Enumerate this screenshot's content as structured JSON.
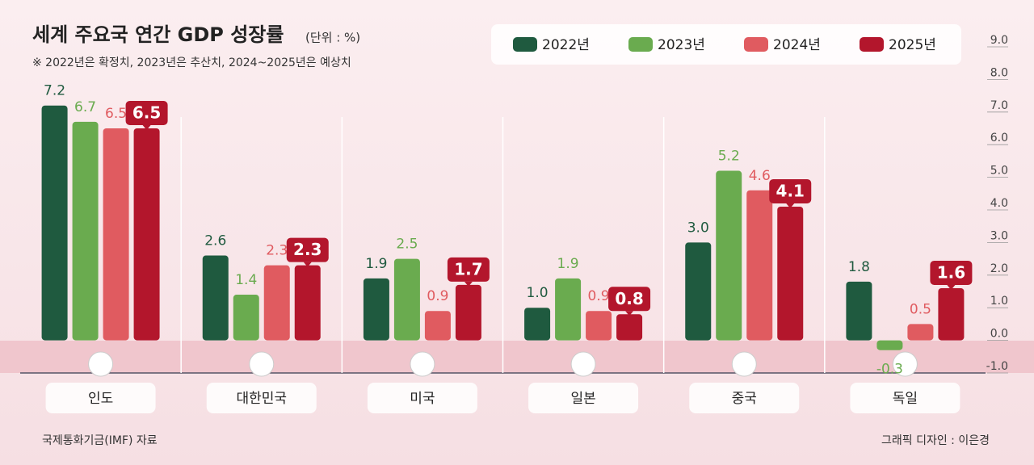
{
  "chart_data": {
    "type": "bar",
    "title": "세계 주요국 연간 GDP 성장률",
    "unit": "(단위 : %)",
    "subtitle": "※ 2022년은 확정치, 2023년은 추산치, 2024~2025년은 예상치",
    "source": "국제통화기금(IMF) 자료",
    "credit": "그래픽 디자인 : 이은경",
    "categories": [
      "인도",
      "대한민국",
      "미국",
      "일본",
      "중국",
      "독일"
    ],
    "series": [
      {
        "name": "2022년",
        "color": "#1f5a3f",
        "values": [
          7.2,
          2.6,
          1.9,
          1.0,
          3.0,
          1.8
        ],
        "value_labels": [
          "7.2",
          "2.6",
          "1.9",
          "1.0",
          "3.0",
          "1.8"
        ]
      },
      {
        "name": "2023년",
        "color": "#6aab4f",
        "values": [
          6.7,
          1.4,
          2.5,
          1.9,
          5.2,
          -0.3
        ],
        "value_labels": [
          "6.7",
          "1.4",
          "2.5",
          "1.9",
          "5.2",
          "-0.3"
        ]
      },
      {
        "name": "2024년",
        "color": "#e05b60",
        "values": [
          6.5,
          2.3,
          0.9,
          0.9,
          4.6,
          0.5
        ],
        "value_labels": [
          "6.5",
          "2.3",
          "0.9",
          "0.9",
          "4.6",
          "0.5"
        ]
      },
      {
        "name": "2025년",
        "color": "#b3162c",
        "values": [
          6.5,
          2.3,
          1.7,
          0.8,
          4.1,
          1.6
        ],
        "value_labels": [
          "6.5",
          "2.3",
          "1.7",
          "0.8",
          "4.1",
          "1.6"
        ]
      }
    ],
    "ylim": [
      -1,
      9
    ],
    "yticks": [
      {
        "value": 9,
        "label": "9.0"
      },
      {
        "value": 8,
        "label": "8.0"
      },
      {
        "value": 7,
        "label": "7.0"
      },
      {
        "value": 6,
        "label": "6.0"
      },
      {
        "value": 5,
        "label": "5.0"
      },
      {
        "value": 4,
        "label": "4.0"
      },
      {
        "value": 3,
        "label": "3.0"
      },
      {
        "value": 2,
        "label": "2.0"
      },
      {
        "value": 1,
        "label": "1.0"
      },
      {
        "value": 0,
        "label": "0.0"
      },
      {
        "value": -1,
        "label": "-1.0"
      }
    ]
  }
}
